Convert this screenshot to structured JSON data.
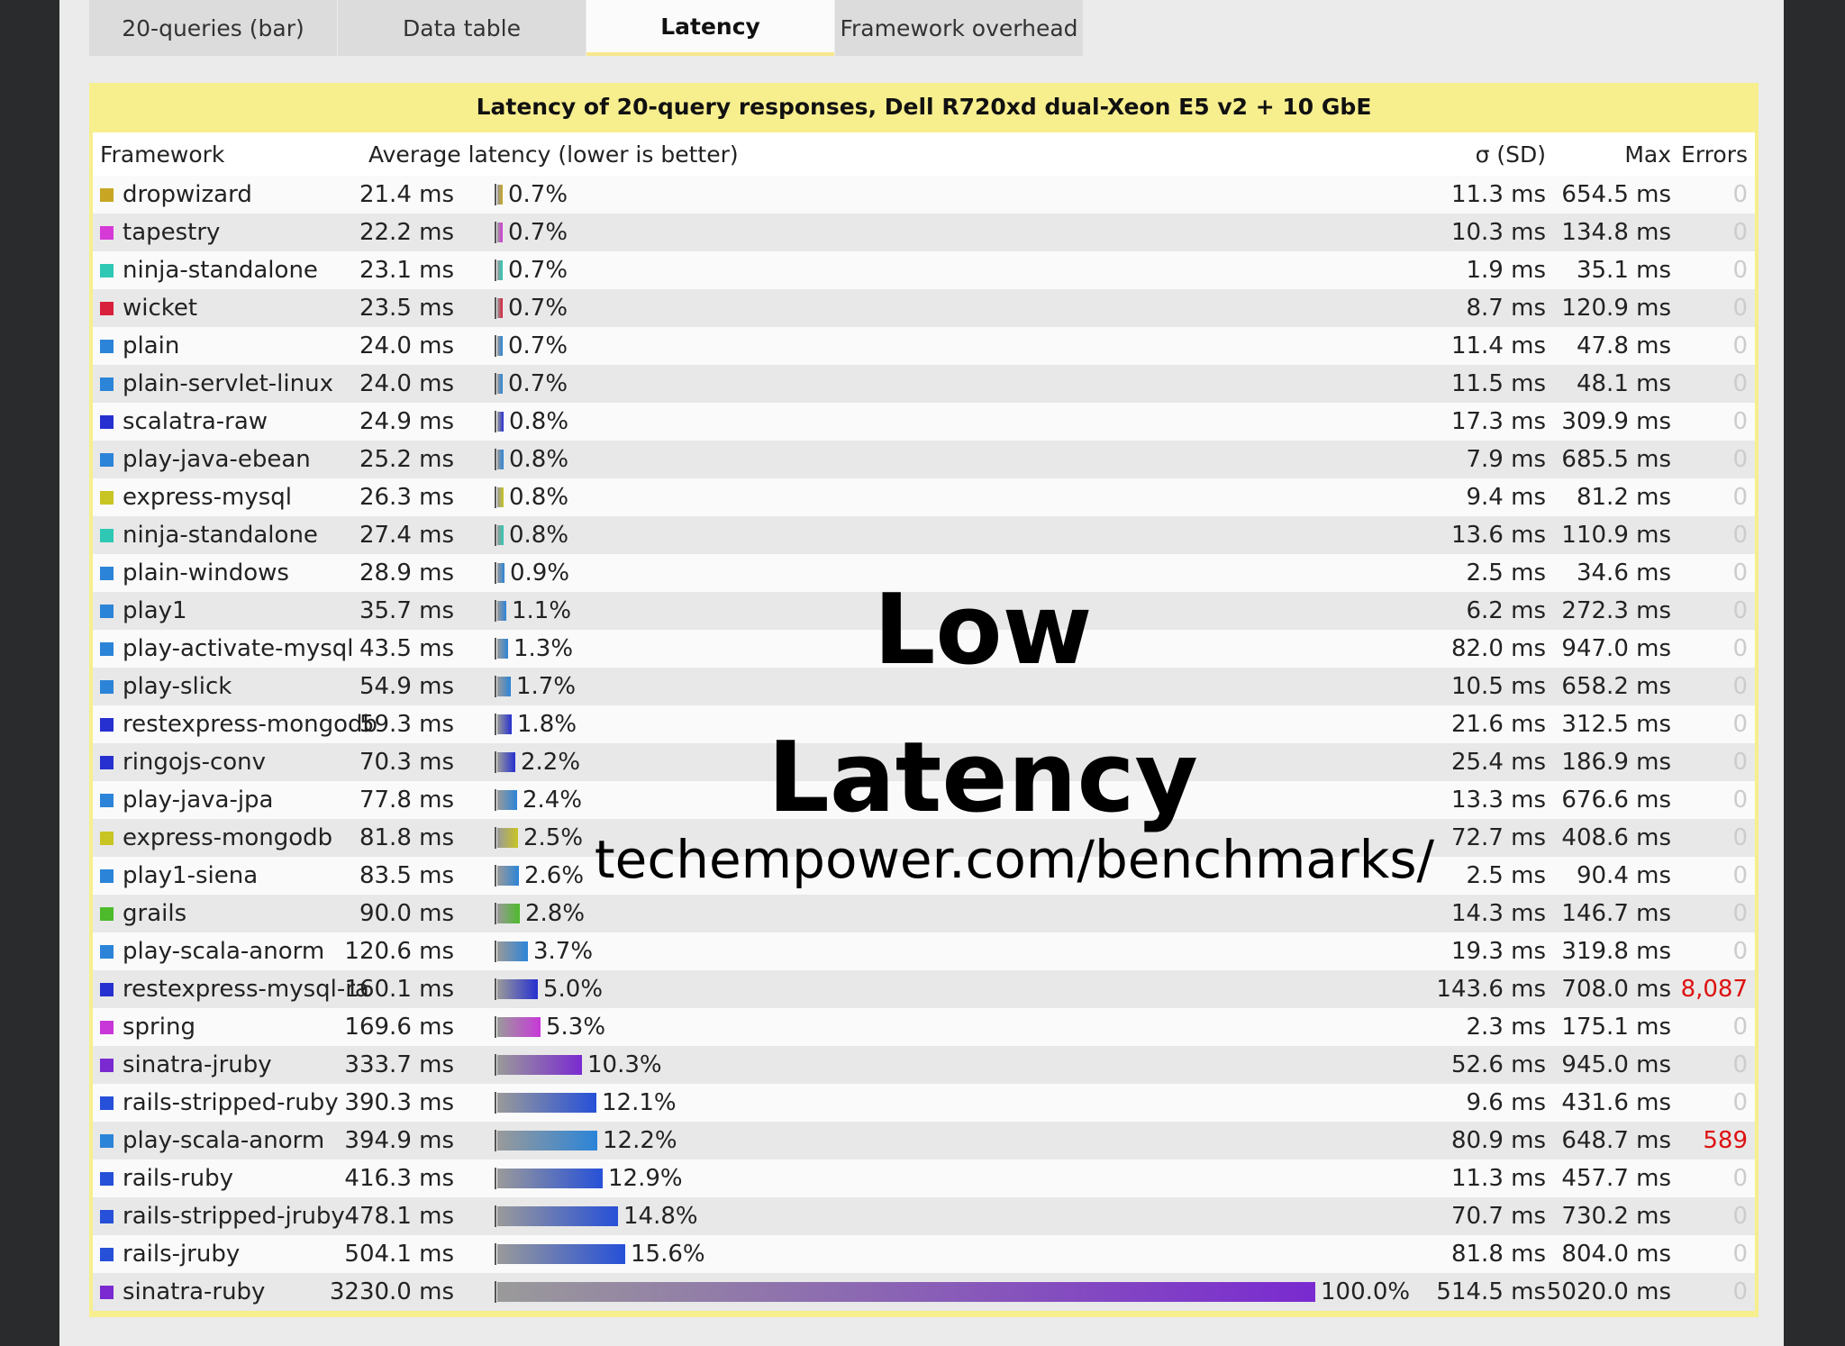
{
  "tabs": [
    {
      "label": "20-queries (bar)",
      "active": false
    },
    {
      "label": "Data table",
      "active": false
    },
    {
      "label": "Latency",
      "active": true
    },
    {
      "label": "Framework overhead",
      "active": false
    }
  ],
  "panel": {
    "title": "Latency of 20-query responses, Dell R720xd dual-Xeon E5 v2 + 10 GbE"
  },
  "columns": {
    "framework": "Framework",
    "average": "Average latency (lower is better)",
    "sd": "σ (SD)",
    "max": "Max",
    "errors": "Errors"
  },
  "rows": [
    {
      "name": "dropwizard",
      "color": "#c8a624",
      "avg": "21.4 ms",
      "pct": "0.7%",
      "pct_value": 0.7,
      "sd": "11.3 ms",
      "max": "654.5 ms",
      "errors": "0"
    },
    {
      "name": "tapestry",
      "color": "#d63ad6",
      "avg": "22.2 ms",
      "pct": "0.7%",
      "pct_value": 0.7,
      "sd": "10.3 ms",
      "max": "134.8 ms",
      "errors": "0"
    },
    {
      "name": "ninja-standalone",
      "color": "#2ec8b4",
      "avg": "23.1 ms",
      "pct": "0.7%",
      "pct_value": 0.7,
      "sd": "1.9 ms",
      "max": "35.1 ms",
      "errors": "0"
    },
    {
      "name": "wicket",
      "color": "#d81f3c",
      "avg": "23.5 ms",
      "pct": "0.7%",
      "pct_value": 0.7,
      "sd": "8.7 ms",
      "max": "120.9 ms",
      "errors": "0"
    },
    {
      "name": "plain",
      "color": "#2b84d8",
      "avg": "24.0 ms",
      "pct": "0.7%",
      "pct_value": 0.7,
      "sd": "11.4 ms",
      "max": "47.8 ms",
      "errors": "0"
    },
    {
      "name": "plain-servlet-linux",
      "color": "#2b84d8",
      "avg": "24.0 ms",
      "pct": "0.7%",
      "pct_value": 0.7,
      "sd": "11.5 ms",
      "max": "48.1 ms",
      "errors": "0"
    },
    {
      "name": "scalatra-raw",
      "color": "#2630d0",
      "avg": "24.9 ms",
      "pct": "0.8%",
      "pct_value": 0.8,
      "sd": "17.3 ms",
      "max": "309.9 ms",
      "errors": "0"
    },
    {
      "name": "play-java-ebean",
      "color": "#2b84d8",
      "avg": "25.2 ms",
      "pct": "0.8%",
      "pct_value": 0.8,
      "sd": "7.9 ms",
      "max": "685.5 ms",
      "errors": "0"
    },
    {
      "name": "express-mysql",
      "color": "#c8c424",
      "avg": "26.3 ms",
      "pct": "0.8%",
      "pct_value": 0.8,
      "sd": "9.4 ms",
      "max": "81.2 ms",
      "errors": "0"
    },
    {
      "name": "ninja-standalone",
      "color": "#2ec8b4",
      "avg": "27.4 ms",
      "pct": "0.8%",
      "pct_value": 0.8,
      "sd": "13.6 ms",
      "max": "110.9 ms",
      "errors": "0"
    },
    {
      "name": "plain-windows",
      "color": "#2b84d8",
      "avg": "28.9 ms",
      "pct": "0.9%",
      "pct_value": 0.9,
      "sd": "2.5 ms",
      "max": "34.6 ms",
      "errors": "0"
    },
    {
      "name": "play1",
      "color": "#2b84d8",
      "avg": "35.7 ms",
      "pct": "1.1%",
      "pct_value": 1.1,
      "sd": "6.2 ms",
      "max": "272.3 ms",
      "errors": "0"
    },
    {
      "name": "play-activate-mysql",
      "color": "#2b84d8",
      "avg": "43.5 ms",
      "pct": "1.3%",
      "pct_value": 1.3,
      "sd": "82.0 ms",
      "max": "947.0 ms",
      "errors": "0"
    },
    {
      "name": "play-slick",
      "color": "#2b84d8",
      "avg": "54.9 ms",
      "pct": "1.7%",
      "pct_value": 1.7,
      "sd": "10.5 ms",
      "max": "658.2 ms",
      "errors": "0"
    },
    {
      "name": "restexpress-mongodb",
      "color": "#2630d0",
      "avg": "59.3 ms",
      "pct": "1.8%",
      "pct_value": 1.8,
      "sd": "21.6 ms",
      "max": "312.5 ms",
      "errors": "0"
    },
    {
      "name": "ringojs-conv",
      "color": "#2630d0",
      "avg": "70.3 ms",
      "pct": "2.2%",
      "pct_value": 2.2,
      "sd": "25.4 ms",
      "max": "186.9 ms",
      "errors": "0"
    },
    {
      "name": "play-java-jpa",
      "color": "#2b84d8",
      "avg": "77.8 ms",
      "pct": "2.4%",
      "pct_value": 2.4,
      "sd": "13.3 ms",
      "max": "676.6 ms",
      "errors": "0"
    },
    {
      "name": "express-mongodb",
      "color": "#c8c424",
      "avg": "81.8 ms",
      "pct": "2.5%",
      "pct_value": 2.5,
      "sd": "72.7 ms",
      "max": "408.6 ms",
      "errors": "0"
    },
    {
      "name": "play1-siena",
      "color": "#2b84d8",
      "avg": "83.5 ms",
      "pct": "2.6%",
      "pct_value": 2.6,
      "sd": "2.5 ms",
      "max": "90.4 ms",
      "errors": "0"
    },
    {
      "name": "grails",
      "color": "#4cba2a",
      "avg": "90.0 ms",
      "pct": "2.8%",
      "pct_value": 2.8,
      "sd": "14.3 ms",
      "max": "146.7 ms",
      "errors": "0"
    },
    {
      "name": "play-scala-anorm",
      "color": "#2b84d8",
      "avg": "120.6 ms",
      "pct": "3.7%",
      "pct_value": 3.7,
      "sd": "19.3 ms",
      "max": "319.8 ms",
      "errors": "0"
    },
    {
      "name": "restexpress-mysql-ra",
      "color": "#2630d0",
      "avg": "160.1 ms",
      "pct": "5.0%",
      "pct_value": 5.0,
      "sd": "143.6 ms",
      "max": "708.0 ms",
      "errors": "8,087"
    },
    {
      "name": "spring",
      "color": "#c838d8",
      "avg": "169.6 ms",
      "pct": "5.3%",
      "pct_value": 5.3,
      "sd": "2.3 ms",
      "max": "175.1 ms",
      "errors": "0"
    },
    {
      "name": "sinatra-jruby",
      "color": "#7a2ad0",
      "avg": "333.7 ms",
      "pct": "10.3%",
      "pct_value": 10.3,
      "sd": "52.6 ms",
      "max": "945.0 ms",
      "errors": "0"
    },
    {
      "name": "rails-stripped-ruby",
      "color": "#2650d8",
      "avg": "390.3 ms",
      "pct": "12.1%",
      "pct_value": 12.1,
      "sd": "9.6 ms",
      "max": "431.6 ms",
      "errors": "0"
    },
    {
      "name": "play-scala-anorm",
      "color": "#2b84d8",
      "avg": "394.9 ms",
      "pct": "12.2%",
      "pct_value": 12.2,
      "sd": "80.9 ms",
      "max": "648.7 ms",
      "errors": "589"
    },
    {
      "name": "rails-ruby",
      "color": "#2650d8",
      "avg": "416.3 ms",
      "pct": "12.9%",
      "pct_value": 12.9,
      "sd": "11.3 ms",
      "max": "457.7 ms",
      "errors": "0"
    },
    {
      "name": "rails-stripped-jruby",
      "color": "#2650d8",
      "avg": "478.1 ms",
      "pct": "14.8%",
      "pct_value": 14.8,
      "sd": "70.7 ms",
      "max": "730.2 ms",
      "errors": "0"
    },
    {
      "name": "rails-jruby",
      "color": "#2650d8",
      "avg": "504.1 ms",
      "pct": "15.6%",
      "pct_value": 15.6,
      "sd": "81.8 ms",
      "max": "804.0 ms",
      "errors": "0"
    },
    {
      "name": "sinatra-ruby",
      "color": "#7a2ad0",
      "avg": "3230.0 ms",
      "pct": "100.0%",
      "pct_value": 100.0,
      "sd": "514.5 ms",
      "max": "5020.0 ms",
      "errors": "0"
    }
  ],
  "overlay": {
    "line1": "Low",
    "line2": "Latency",
    "url": "techempower.com/benchmarks/"
  }
}
